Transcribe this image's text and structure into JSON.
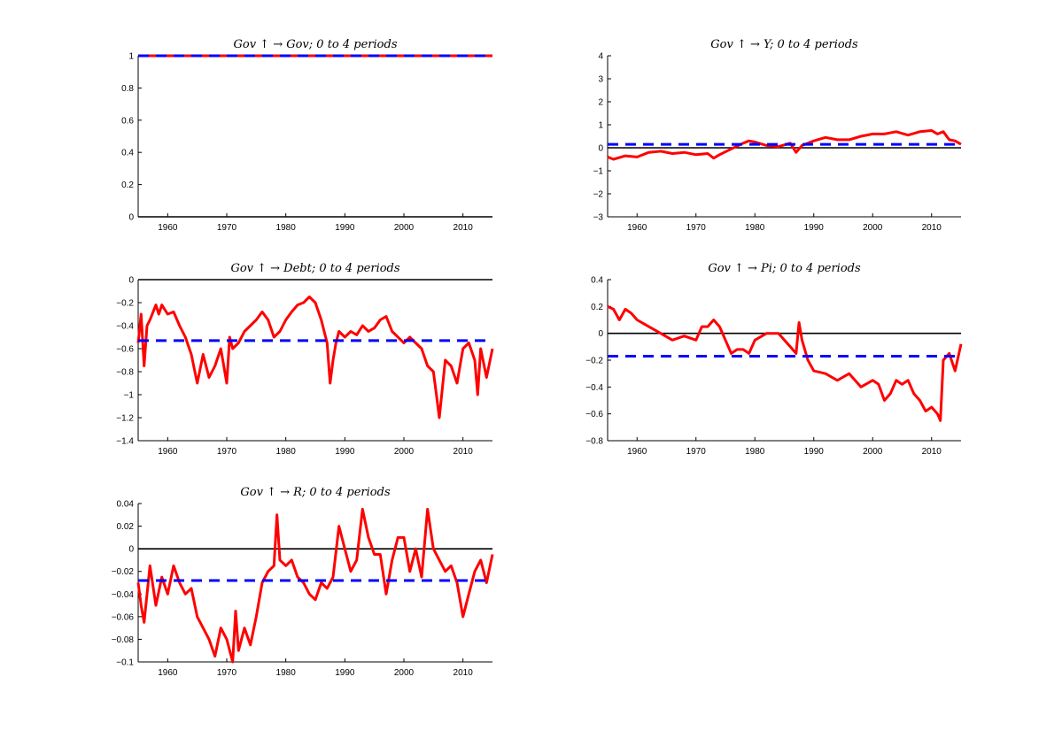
{
  "chart_data": [
    {
      "type": "line",
      "title": "Gov ↑ → Gov; 0 to 4 periods",
      "xlim": [
        1955,
        2015
      ],
      "ylim": [
        0,
        1
      ],
      "x_ticks": [
        1960,
        1970,
        1980,
        1990,
        2000,
        2010
      ],
      "y_ticks": [
        0,
        0.2,
        0.4,
        0.6,
        0.8,
        1
      ],
      "y_tick_labels": [
        "0",
        "0.2",
        "0.4",
        "0.6",
        "0.8",
        "1"
      ],
      "zero_line": 0,
      "dashed_level": 1,
      "series": [
        {
          "color": "#ff0000",
          "style": "solid",
          "x": [
            1955,
            1960,
            1965,
            1970,
            1975,
            1980,
            1985,
            1990,
            1995,
            2000,
            2005,
            2010,
            2015
          ],
          "y": [
            1,
            1,
            1,
            1,
            1,
            1,
            1,
            1,
            1,
            1,
            1,
            1,
            1
          ]
        }
      ]
    },
    {
      "type": "line",
      "title": "Gov ↑ → Y; 0 to 4 periods",
      "xlim": [
        1955,
        2015
      ],
      "ylim": [
        -3,
        4
      ],
      "x_ticks": [
        1960,
        1970,
        1980,
        1990,
        2000,
        2010
      ],
      "y_ticks": [
        -3,
        -2,
        -1,
        0,
        1,
        2,
        3,
        4
      ],
      "y_tick_labels": [
        "−3",
        "−2",
        "−1",
        "0",
        "1",
        "2",
        "3",
        "4"
      ],
      "zero_line": 0,
      "dashed_level": 0.15,
      "series": [
        {
          "color": "#ff0000",
          "style": "solid",
          "x": [
            1955,
            1956,
            1958,
            1960,
            1962,
            1964,
            1966,
            1968,
            1970,
            1972,
            1973,
            1974,
            1976,
            1978,
            1979,
            1980,
            1982,
            1984,
            1986,
            1987,
            1988,
            1990,
            1992,
            1994,
            1996,
            1998,
            2000,
            2002,
            2004,
            2006,
            2008,
            2010,
            2011,
            2012,
            2013,
            2014,
            2015
          ],
          "y": [
            -0.4,
            -0.5,
            -0.35,
            -0.4,
            -0.2,
            -0.15,
            -0.25,
            -0.2,
            -0.3,
            -0.25,
            -0.45,
            -0.3,
            -0.05,
            0.2,
            0.3,
            0.25,
            0.1,
            0.05,
            0.2,
            -0.2,
            0.1,
            0.3,
            0.45,
            0.35,
            0.35,
            0.5,
            0.6,
            0.6,
            0.7,
            0.55,
            0.7,
            0.75,
            0.6,
            0.7,
            0.35,
            0.3,
            0.15
          ]
        }
      ]
    },
    {
      "type": "line",
      "title": "Gov ↑ → Debt; 0 to 4 periods",
      "xlim": [
        1955,
        2015
      ],
      "ylim": [
        -1.4,
        0
      ],
      "x_ticks": [
        1960,
        1970,
        1980,
        1990,
        2000,
        2010
      ],
      "y_ticks": [
        -1.4,
        -1.2,
        -1,
        -0.8,
        -0.6,
        -0.4,
        -0.2,
        0
      ],
      "y_tick_labels": [
        "−1.4",
        "−1.2",
        "−1",
        "−0.8",
        "−0.6",
        "−0.4",
        "−0.2",
        "0"
      ],
      "zero_line": 0,
      "dashed_level": -0.53,
      "series": [
        {
          "color": "#ff0000",
          "style": "solid",
          "x": [
            1955,
            1955.5,
            1956,
            1956.5,
            1957,
            1958,
            1958.5,
            1959,
            1960,
            1961,
            1962,
            1963,
            1964,
            1965,
            1966,
            1967,
            1968,
            1969,
            1970,
            1970.5,
            1971,
            1972,
            1973,
            1974,
            1975,
            1976,
            1977,
            1978,
            1979,
            1980,
            1981,
            1982,
            1983,
            1984,
            1985,
            1986,
            1987,
            1987.5,
            1988,
            1988.5,
            1989,
            1990,
            1991,
            1992,
            1993,
            1994,
            1995,
            1996,
            1997,
            1998,
            1999,
            2000,
            2001,
            2002,
            2003,
            2004,
            2005,
            2005.5,
            2006,
            2007,
            2008,
            2009,
            2010,
            2011,
            2012,
            2012.5,
            2013,
            2014,
            2015
          ],
          "y": [
            -0.55,
            -0.3,
            -0.75,
            -0.4,
            -0.35,
            -0.22,
            -0.3,
            -0.22,
            -0.3,
            -0.28,
            -0.4,
            -0.5,
            -0.65,
            -0.9,
            -0.65,
            -0.85,
            -0.75,
            -0.6,
            -0.9,
            -0.5,
            -0.6,
            -0.55,
            -0.45,
            -0.4,
            -0.35,
            -0.28,
            -0.35,
            -0.5,
            -0.45,
            -0.35,
            -0.28,
            -0.22,
            -0.2,
            -0.15,
            -0.2,
            -0.35,
            -0.55,
            -0.9,
            -0.7,
            -0.55,
            -0.45,
            -0.5,
            -0.45,
            -0.48,
            -0.4,
            -0.45,
            -0.42,
            -0.35,
            -0.32,
            -0.45,
            -0.5,
            -0.55,
            -0.5,
            -0.55,
            -0.6,
            -0.75,
            -0.8,
            -1.0,
            -1.2,
            -0.7,
            -0.75,
            -0.9,
            -0.6,
            -0.55,
            -0.7,
            -1.0,
            -0.6,
            -0.85,
            -0.6
          ]
        }
      ]
    },
    {
      "type": "line",
      "title": "Gov ↑ → Pi; 0 to 4 periods",
      "xlim": [
        1955,
        2015
      ],
      "ylim": [
        -0.8,
        0.4
      ],
      "x_ticks": [
        1960,
        1970,
        1980,
        1990,
        2000,
        2010
      ],
      "y_ticks": [
        -0.8,
        -0.6,
        -0.4,
        -0.2,
        0,
        0.2,
        0.4
      ],
      "y_tick_labels": [
        "−0.8",
        "−0.6",
        "−0.4",
        "−0.2",
        "0",
        "0.2",
        "0.4"
      ],
      "zero_line": 0,
      "dashed_level": -0.17,
      "series": [
        {
          "color": "#ff0000",
          "style": "solid",
          "x": [
            1955,
            1956,
            1957,
            1958,
            1959,
            1960,
            1962,
            1964,
            1966,
            1968,
            1970,
            1971,
            1972,
            1973,
            1974,
            1975,
            1976,
            1977,
            1978,
            1979,
            1980,
            1982,
            1984,
            1986,
            1987,
            1987.5,
            1988,
            1989,
            1990,
            1992,
            1994,
            1996,
            1998,
            2000,
            2001,
            2002,
            2003,
            2004,
            2005,
            2006,
            2007,
            2008,
            2009,
            2010,
            2011,
            2011.5,
            2012,
            2013,
            2014,
            2015
          ],
          "y": [
            0.2,
            0.18,
            0.1,
            0.18,
            0.15,
            0.1,
            0.05,
            0.0,
            -0.05,
            -0.02,
            -0.05,
            0.05,
            0.05,
            0.1,
            0.05,
            -0.05,
            -0.15,
            -0.12,
            -0.12,
            -0.15,
            -0.05,
            0.0,
            0.0,
            -0.1,
            -0.15,
            0.08,
            -0.05,
            -0.2,
            -0.28,
            -0.3,
            -0.35,
            -0.3,
            -0.4,
            -0.35,
            -0.38,
            -0.5,
            -0.45,
            -0.35,
            -0.38,
            -0.35,
            -0.45,
            -0.5,
            -0.58,
            -0.55,
            -0.6,
            -0.65,
            -0.2,
            -0.15,
            -0.28,
            -0.08
          ]
        }
      ]
    },
    {
      "type": "line",
      "title": "Gov ↑ → R; 0 to 4 periods",
      "xlim": [
        1955,
        2015
      ],
      "ylim": [
        -0.1,
        0.04
      ],
      "x_ticks": [
        1960,
        1970,
        1980,
        1990,
        2000,
        2010
      ],
      "y_ticks": [
        -0.1,
        -0.08,
        -0.06,
        -0.04,
        -0.02,
        0,
        0.02,
        0.04
      ],
      "y_tick_labels": [
        "−0.1",
        "−0.08",
        "−0.06",
        "−0.04",
        "−0.02",
        "0",
        "0.02",
        "0.04"
      ],
      "zero_line": 0,
      "dashed_level": -0.028,
      "series": [
        {
          "color": "#ff0000",
          "style": "solid",
          "x": [
            1955,
            1955.5,
            1956,
            1957,
            1958,
            1959,
            1960,
            1961,
            1962,
            1963,
            1964,
            1965,
            1966,
            1967,
            1968,
            1969,
            1970,
            1971,
            1971.5,
            1972,
            1973,
            1974,
            1975,
            1976,
            1977,
            1978,
            1978.5,
            1979,
            1980,
            1981,
            1982,
            1983,
            1984,
            1985,
            1986,
            1987,
            1988,
            1989,
            1990,
            1991,
            1992,
            1993,
            1994,
            1995,
            1996,
            1997,
            1998,
            1999,
            2000,
            2001,
            2002,
            2003,
            2004,
            2005,
            2006,
            2007,
            2008,
            2009,
            2010,
            2011,
            2012,
            2013,
            2014,
            2015
          ],
          "y": [
            -0.03,
            -0.05,
            -0.065,
            -0.015,
            -0.05,
            -0.025,
            -0.04,
            -0.015,
            -0.03,
            -0.04,
            -0.035,
            -0.06,
            -0.07,
            -0.08,
            -0.095,
            -0.07,
            -0.08,
            -0.1,
            -0.055,
            -0.09,
            -0.07,
            -0.085,
            -0.06,
            -0.03,
            -0.02,
            -0.015,
            0.03,
            -0.01,
            -0.015,
            -0.01,
            -0.025,
            -0.03,
            -0.04,
            -0.045,
            -0.03,
            -0.035,
            -0.025,
            0.02,
            0.0,
            -0.02,
            -0.01,
            0.035,
            0.01,
            -0.005,
            -0.005,
            -0.04,
            -0.01,
            0.01,
            0.01,
            -0.02,
            0.0,
            -0.025,
            0.035,
            0.0,
            -0.01,
            -0.02,
            -0.015,
            -0.03,
            -0.06,
            -0.04,
            -0.02,
            -0.01,
            -0.03,
            -0.005
          ]
        }
      ]
    }
  ]
}
